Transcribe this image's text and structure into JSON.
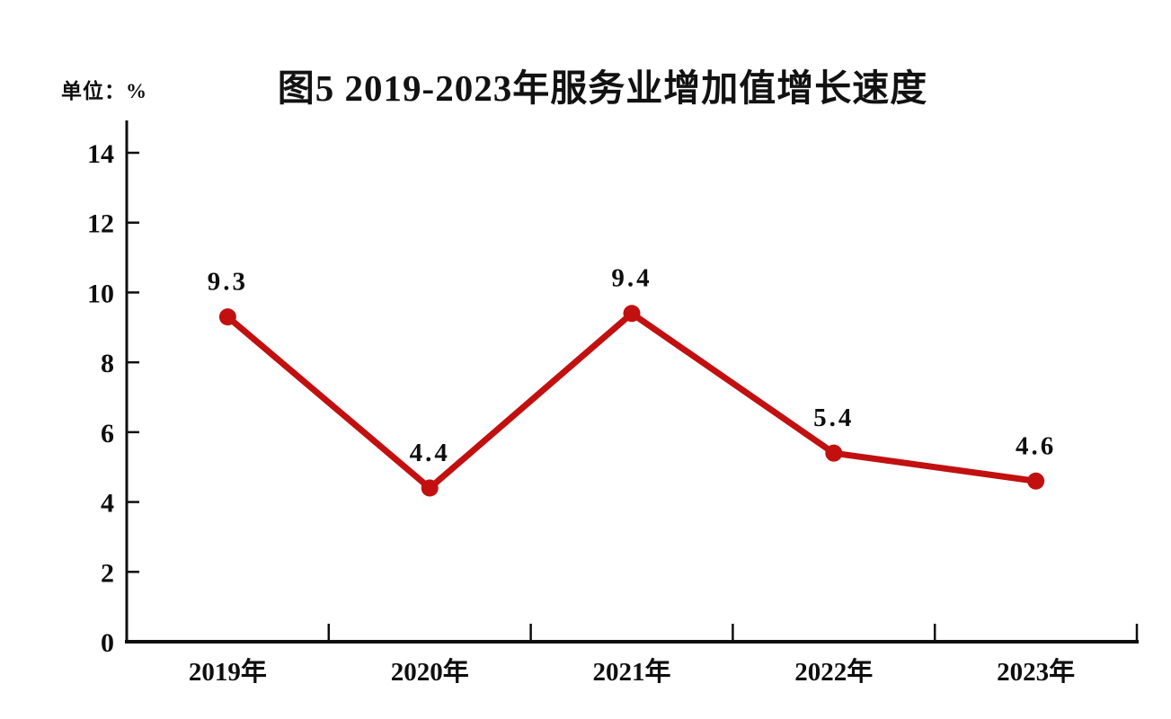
{
  "chart_data": {
    "type": "line",
    "title": "图5 2019-2023年服务业增加值增长速度",
    "unit_label": "单位：%",
    "categories": [
      "2019年",
      "2020年",
      "2021年",
      "2022年",
      "2023年"
    ],
    "series": [
      {
        "name": "服务业增加值增长速度",
        "values": [
          9.3,
          4.4,
          9.4,
          5.4,
          4.6
        ],
        "data_labels": [
          "9.3",
          "4.4",
          "9.4",
          "5.4",
          "4.6"
        ]
      }
    ],
    "xlabel": "",
    "ylabel": "",
    "ylim": [
      0,
      14
    ],
    "yticks": [
      0,
      2,
      4,
      6,
      8,
      10,
      12,
      14
    ],
    "grid": false,
    "legend_position": "none",
    "colors": {
      "line": "#c21010",
      "marker": "#c21010",
      "axis": "#0e0e0e",
      "text": "#0e0e0e",
      "background": "#ffffff"
    }
  }
}
